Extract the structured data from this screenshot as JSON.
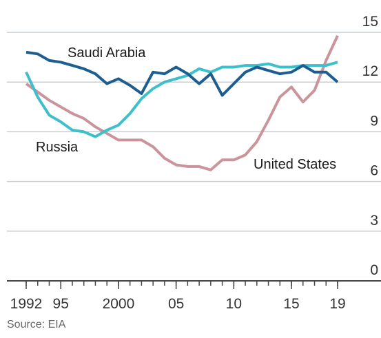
{
  "chart_data": {
    "type": "line",
    "source": "Source: EIA",
    "x": [
      1992,
      1993,
      1994,
      1995,
      1996,
      1997,
      1998,
      1999,
      2000,
      2001,
      2002,
      2003,
      2004,
      2005,
      2006,
      2007,
      2008,
      2009,
      2010,
      2011,
      2012,
      2013,
      2014,
      2015,
      2016,
      2017,
      2018,
      2019
    ],
    "series": [
      {
        "name": "Saudi Arabia",
        "color": "#1d5d8f",
        "values": [
          13.8,
          13.7,
          13.3,
          13.2,
          13.0,
          12.8,
          12.5,
          11.9,
          12.2,
          11.8,
          11.3,
          12.6,
          12.5,
          12.9,
          12.5,
          11.9,
          12.5,
          11.2,
          11.9,
          12.6,
          12.9,
          12.7,
          12.5,
          12.6,
          13.0,
          12.6,
          12.6,
          12.0
        ]
      },
      {
        "name": "Russia",
        "color": "#3ebfcc",
        "values": [
          12.6,
          11.1,
          10.0,
          9.6,
          9.1,
          9.0,
          8.7,
          9.1,
          9.4,
          10.1,
          11.0,
          11.6,
          12.0,
          12.2,
          12.4,
          12.8,
          12.6,
          12.9,
          12.9,
          13.0,
          13.0,
          13.1,
          12.9,
          12.9,
          13.0,
          13.0,
          13.0,
          13.2
        ]
      },
      {
        "name": "United States",
        "color": "#c9949b",
        "values": [
          11.9,
          11.4,
          10.9,
          10.5,
          10.1,
          9.8,
          9.3,
          8.9,
          8.5,
          8.5,
          8.5,
          8.1,
          7.4,
          7.0,
          6.9,
          6.9,
          6.7,
          7.3,
          7.3,
          7.6,
          8.4,
          9.7,
          11.1,
          11.7,
          10.8,
          11.5,
          13.3,
          14.8
        ]
      }
    ],
    "xlim": [
      1992,
      2019
    ],
    "xticks": [
      1992,
      {
        "value": 1995,
        "label": "95"
      },
      2000,
      {
        "value": 2005,
        "label": "05"
      },
      {
        "value": 2010,
        "label": "10"
      },
      {
        "value": 2015,
        "label": "15"
      },
      {
        "value": 2019,
        "label": "19"
      }
    ],
    "ylim": [
      0,
      15
    ],
    "yticks": [
      0,
      3,
      6,
      9,
      12,
      15
    ],
    "grid": true
  }
}
